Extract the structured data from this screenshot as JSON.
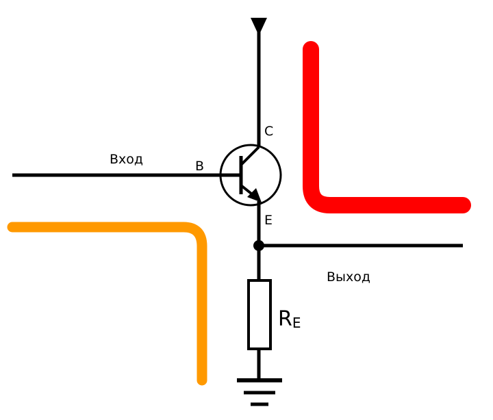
{
  "labels": {
    "input": "Вход",
    "output": "Выход",
    "base": "B",
    "collector": "C",
    "emitter": "E",
    "resistor_main": "R",
    "resistor_sub": "E"
  },
  "colors": {
    "wire": "#000000",
    "input_path": "#FF9900",
    "output_path": "#FF0000",
    "background": "#FFFFFF"
  }
}
